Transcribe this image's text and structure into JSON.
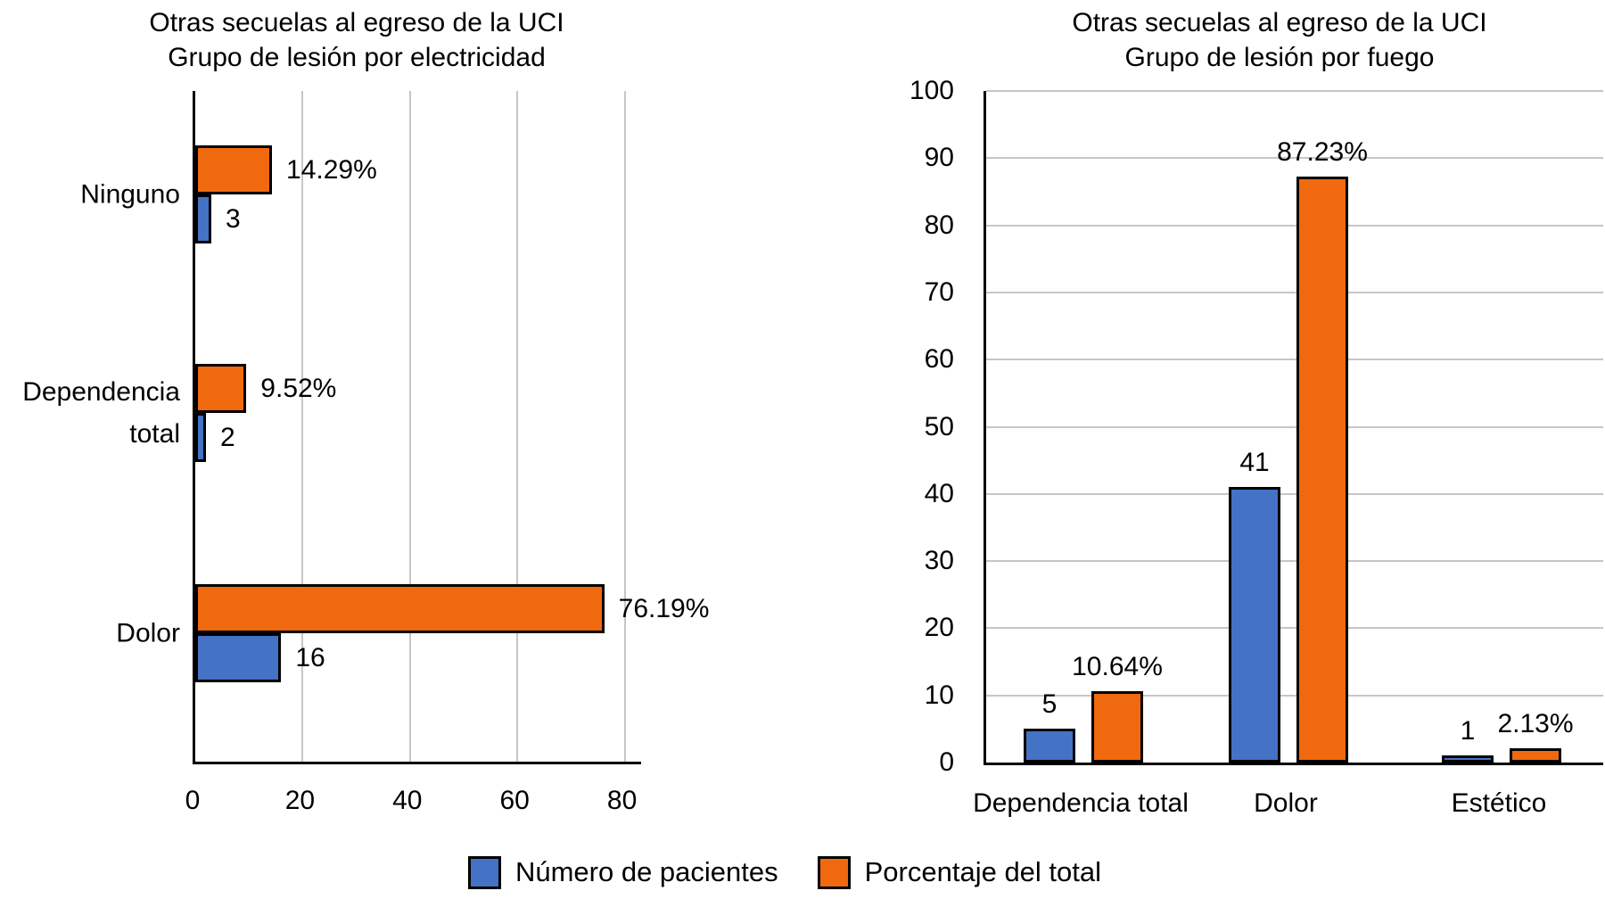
{
  "page": {
    "background": "#ffffff"
  },
  "colors": {
    "patients_blue": "#4472C4",
    "percent_orange": "#F0690F",
    "gridline_gray": "#C6C6C6",
    "axis_black": "#000000"
  },
  "legend": {
    "items": [
      {
        "label": "Número de pacientes",
        "color": "#4472C4"
      },
      {
        "label": "Porcentaje del total",
        "color": "#F0690F"
      }
    ]
  },
  "chart_data": [
    {
      "type": "bar",
      "orientation": "horizontal",
      "title": "Otras secuelas al egreso de la UCI",
      "subtitle": "Grupo de lesión por electricidad",
      "categories": [
        "Ninguno",
        "Dependencia total",
        "Dolor"
      ],
      "series": [
        {
          "name": "Número de pacientes",
          "color": "#4472C4",
          "values": [
            3,
            2,
            16
          ],
          "labels": [
            "3",
            "2",
            "16"
          ]
        },
        {
          "name": "Porcentaje del total",
          "color": "#F0690F",
          "values": [
            14.29,
            9.52,
            76.19
          ],
          "labels": [
            "14.29%",
            "9.52%",
            "76.19%"
          ]
        }
      ],
      "value_axis": {
        "min": 0,
        "max": 80,
        "ticks": [
          0,
          20,
          40,
          60,
          80
        ]
      },
      "grid": "vertical",
      "legend_position": "bottom"
    },
    {
      "type": "bar",
      "orientation": "vertical",
      "title": "Otras secuelas al egreso de la UCI",
      "subtitle": "Grupo de lesión por fuego",
      "categories": [
        "Dependencia total",
        "Dolor",
        "Estético"
      ],
      "series": [
        {
          "name": "Número de pacientes",
          "color": "#4472C4",
          "values": [
            5,
            41,
            1
          ],
          "labels": [
            "5",
            "41",
            "1"
          ]
        },
        {
          "name": "Porcentaje del total",
          "color": "#F0690F",
          "values": [
            10.64,
            87.23,
            2.13
          ],
          "labels": [
            "10.64%",
            "87.23%",
            "2.13%"
          ]
        }
      ],
      "value_axis": {
        "min": 0,
        "max": 100,
        "ticks": [
          0,
          10,
          20,
          30,
          40,
          50,
          60,
          70,
          80,
          90,
          100
        ]
      },
      "grid": "horizontal",
      "legend_position": "bottom"
    }
  ]
}
